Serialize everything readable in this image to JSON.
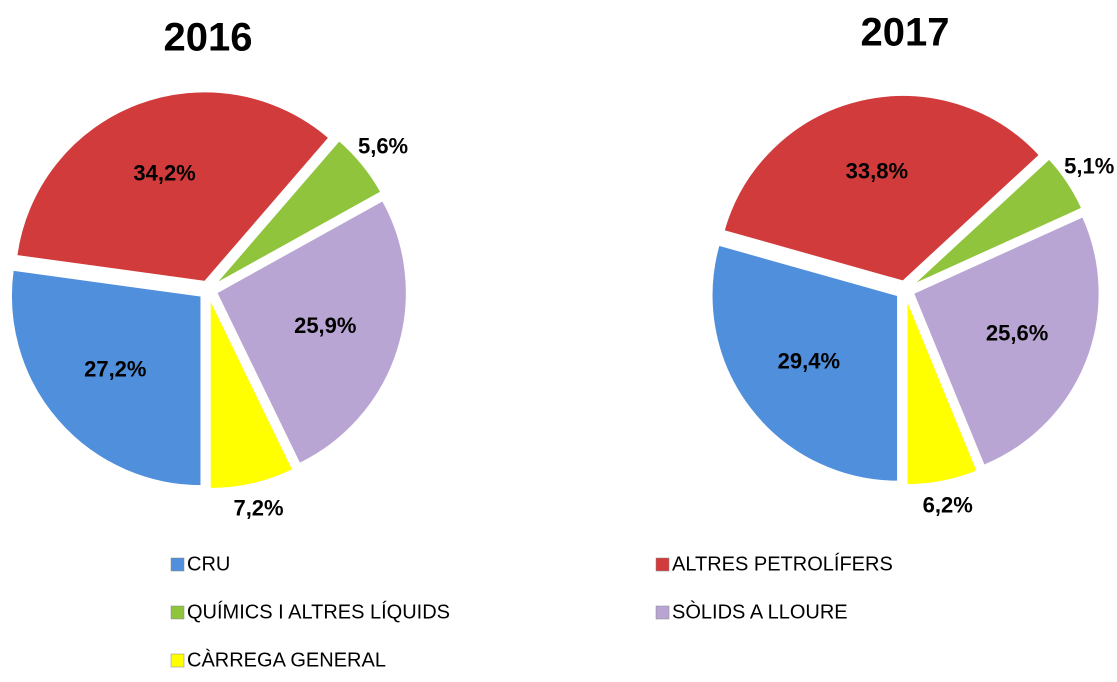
{
  "chart_data": [
    {
      "type": "pie",
      "title": "2016",
      "categories": [
        "CRU",
        "ALTRES PETROLÍFERS",
        "QUÍMICS I ALTRES LÍQUIDS",
        "SÒLIDS A LLOURE",
        "CÀRREGA GENERAL"
      ],
      "values": [
        27.2,
        34.2,
        5.6,
        25.9,
        7.2
      ],
      "value_labels": [
        "27,2%",
        "34,2%",
        "5,6%",
        "25,9%",
        "7,2%"
      ],
      "colors": [
        "#4f8fdc",
        "#d23b3b",
        "#8fc43c",
        "#b9a5d3",
        "#ffff00"
      ],
      "legend": "bottom"
    },
    {
      "type": "pie",
      "title": "2017",
      "categories": [
        "CRU",
        "ALTRES PETROLÍFERS",
        "QUÍMICS I ALTRES LÍQUIDS",
        "SÒLIDS A LLOURE",
        "CÀRREGA GENERAL"
      ],
      "values": [
        29.4,
        33.8,
        5.1,
        25.6,
        6.2
      ],
      "value_labels": [
        "29,4%",
        "33,8%",
        "5,1%",
        "25,6%",
        "6,2%"
      ],
      "colors": [
        "#4f8fdc",
        "#d23b3b",
        "#8fc43c",
        "#b9a5d3",
        "#ffff00"
      ],
      "legend": "bottom"
    }
  ]
}
